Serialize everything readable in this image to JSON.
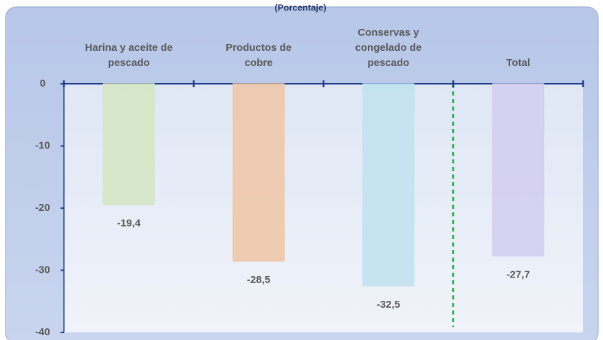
{
  "chart_data": {
    "type": "bar",
    "title": "(Porcentaje)",
    "categories": [
      "Harina y aceite de\npescado",
      "Productos de\ncobre",
      "Conservas y\ncongelado de\npescado",
      "Total"
    ],
    "values": [
      -19.4,
      -28.5,
      -32.5,
      -27.7
    ],
    "value_labels": [
      "-19,4",
      "-28,5",
      "-32,5",
      "-27,7"
    ],
    "colors": [
      "#d3e6c2",
      "#efc6a6",
      "#bfe2ee",
      "#d2cdf0"
    ],
    "ylim": [
      -40,
      0
    ],
    "yticks": [
      0,
      -10,
      -20,
      -30,
      -40
    ]
  }
}
